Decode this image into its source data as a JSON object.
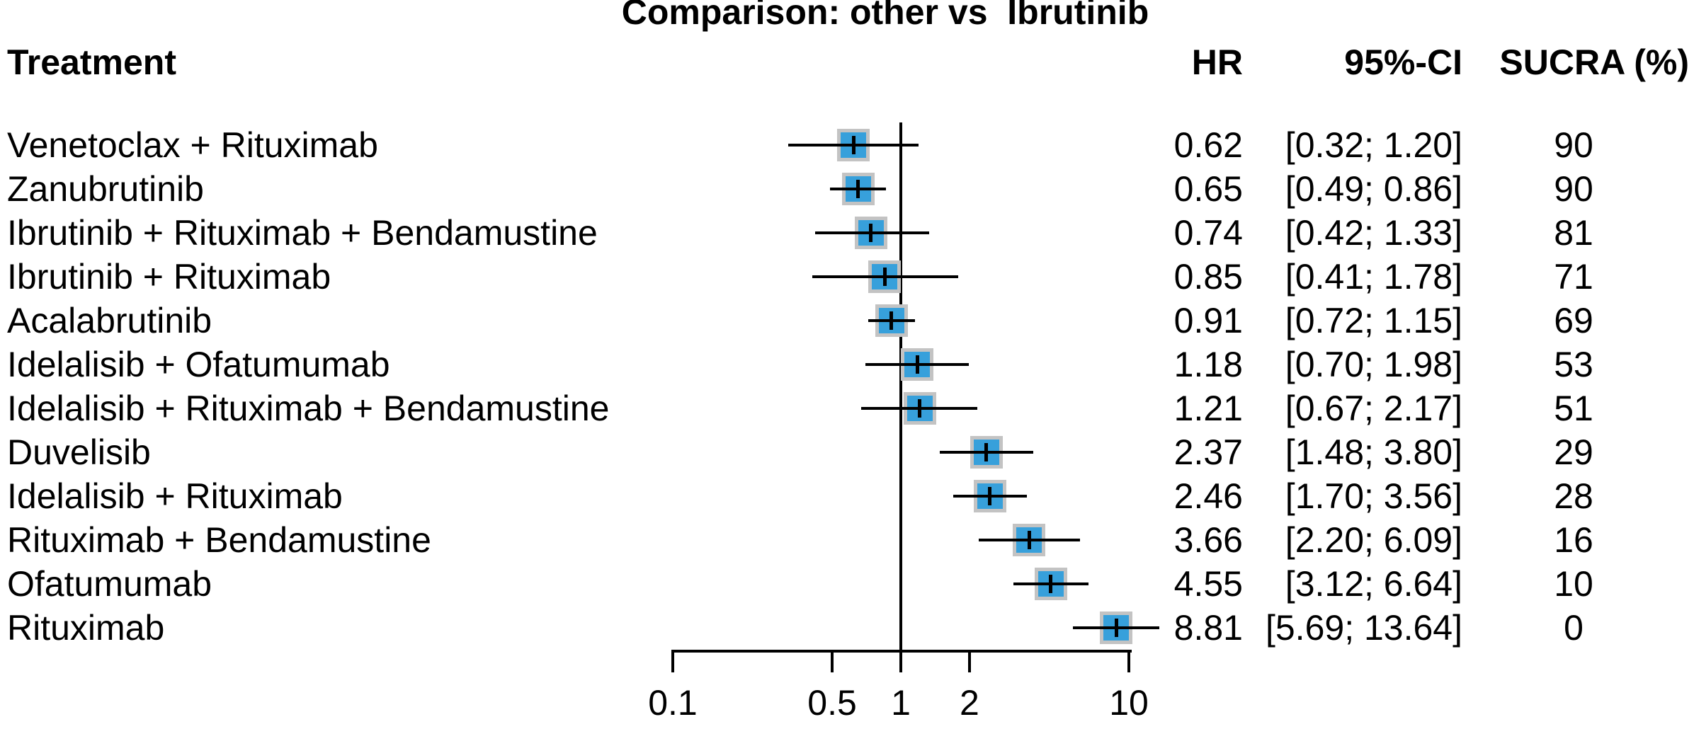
{
  "title": "Comparison: other vs  Ibrutinib",
  "columns": {
    "treatment": "Treatment",
    "hr": "HR",
    "ci": "95%-CI",
    "sucra": "SUCRA (%)"
  },
  "chart_data": {
    "type": "forest",
    "x_scale": "log10",
    "x_axis_range": [
      0.1,
      10
    ],
    "x_ticks": [
      0.1,
      0.5,
      1,
      2,
      10
    ],
    "x_tick_labels": [
      "0.1",
      "0.5",
      "1",
      "2",
      "10"
    ],
    "reference_line_x": 1,
    "effect_measure": "HR",
    "rows": [
      {
        "treatment": "Venetoclax + Rituximab",
        "hr": 0.62,
        "lo": 0.32,
        "hi": 1.2,
        "hr_text": "0.62",
        "ci_text": "[0.32; 1.20]",
        "sucra": "90"
      },
      {
        "treatment": "Zanubrutinib",
        "hr": 0.65,
        "lo": 0.49,
        "hi": 0.86,
        "hr_text": "0.65",
        "ci_text": "[0.49; 0.86]",
        "sucra": "90"
      },
      {
        "treatment": "Ibrutinib + Rituximab + Bendamustine",
        "hr": 0.74,
        "lo": 0.42,
        "hi": 1.33,
        "hr_text": "0.74",
        "ci_text": "[0.42; 1.33]",
        "sucra": "81"
      },
      {
        "treatment": "Ibrutinib + Rituximab",
        "hr": 0.85,
        "lo": 0.41,
        "hi": 1.78,
        "hr_text": "0.85",
        "ci_text": "[0.41; 1.78]",
        "sucra": "71"
      },
      {
        "treatment": "Acalabrutinib",
        "hr": 0.91,
        "lo": 0.72,
        "hi": 1.15,
        "hr_text": "0.91",
        "ci_text": "[0.72; 1.15]",
        "sucra": "69"
      },
      {
        "treatment": "Idelalisib + Ofatumumab",
        "hr": 1.18,
        "lo": 0.7,
        "hi": 1.98,
        "hr_text": "1.18",
        "ci_text": "[0.70; 1.98]",
        "sucra": "53"
      },
      {
        "treatment": "Idelalisib + Rituximab + Bendamustine",
        "hr": 1.21,
        "lo": 0.67,
        "hi": 2.17,
        "hr_text": "1.21",
        "ci_text": "[0.67; 2.17]",
        "sucra": "51"
      },
      {
        "treatment": "Duvelisib",
        "hr": 2.37,
        "lo": 1.48,
        "hi": 3.8,
        "hr_text": "2.37",
        "ci_text": "[1.48; 3.80]",
        "sucra": "29"
      },
      {
        "treatment": "Idelalisib + Rituximab",
        "hr": 2.46,
        "lo": 1.7,
        "hi": 3.56,
        "hr_text": "2.46",
        "ci_text": "[1.70; 3.56]",
        "sucra": "28"
      },
      {
        "treatment": "Rituximab + Bendamustine",
        "hr": 3.66,
        "lo": 2.2,
        "hi": 6.09,
        "hr_text": "3.66",
        "ci_text": "[2.20; 6.09]",
        "sucra": "16"
      },
      {
        "treatment": "Ofatumumab",
        "hr": 4.55,
        "lo": 3.12,
        "hi": 6.64,
        "hr_text": "4.55",
        "ci_text": "[3.12; 6.64]",
        "sucra": "10"
      },
      {
        "treatment": "Rituximab",
        "hr": 8.81,
        "lo": 5.69,
        "hi": 13.64,
        "hr_text": "8.81",
        "ci_text": "[5.69; 13.64]",
        "sucra": "0"
      }
    ],
    "colors": {
      "square_fill": "#37A0DB",
      "square_border": "#C3C3C3",
      "lines": "#000000",
      "text": "#000000",
      "background": "#ffffff"
    },
    "legend": "none",
    "grid": false
  }
}
